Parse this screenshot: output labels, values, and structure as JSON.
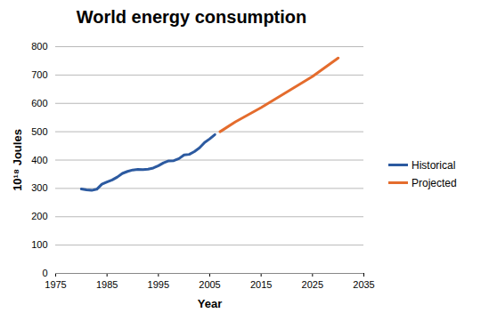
{
  "chart_data": {
    "type": "line",
    "title": "World energy consumption",
    "x_label": "Year",
    "y_label": "10¹⁸ Joules",
    "x": [
      1980,
      1981,
      1982,
      1983,
      1984,
      1985,
      1986,
      1987,
      1988,
      1989,
      1990,
      1991,
      1992,
      1993,
      1994,
      1995,
      1996,
      1997,
      1998,
      1999,
      2000,
      2001,
      2002,
      2003,
      2004,
      2005,
      2006,
      2007,
      2010,
      2015,
      2020,
      2025,
      2030
    ],
    "series": [
      {
        "name": "Historical",
        "color": "#2c5aa0",
        "values": [
          298,
          295,
          293,
          297,
          315,
          323,
          330,
          340,
          353,
          360,
          365,
          367,
          366,
          368,
          372,
          380,
          390,
          397,
          398,
          405,
          418,
          420,
          430,
          443,
          462,
          475,
          490,
          null,
          null,
          null,
          null,
          null,
          null
        ]
      },
      {
        "name": "Projected",
        "color": "#e46c2d",
        "values": [
          null,
          null,
          null,
          null,
          null,
          null,
          null,
          null,
          null,
          null,
          null,
          null,
          null,
          null,
          null,
          null,
          null,
          null,
          null,
          null,
          null,
          null,
          null,
          null,
          null,
          null,
          null,
          500,
          535,
          585,
          640,
          695,
          760
        ]
      }
    ],
    "xlim": [
      1975,
      2035
    ],
    "xticks": [
      1975,
      1985,
      1995,
      2005,
      2015,
      2025,
      2035
    ],
    "ylim": [
      0,
      800
    ],
    "yticks": [
      0,
      100,
      200,
      300,
      400,
      500,
      600,
      700,
      800
    ],
    "grid": true,
    "legend": "right"
  }
}
